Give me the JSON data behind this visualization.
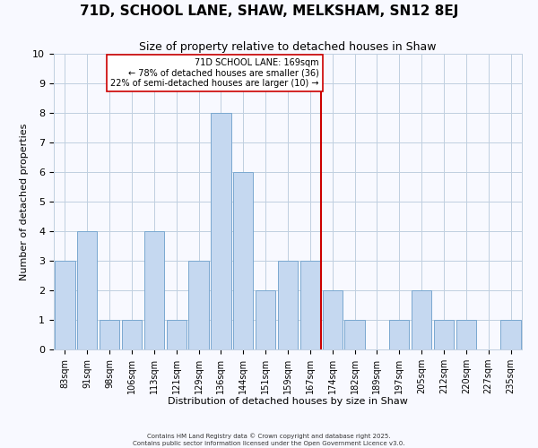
{
  "title": "71D, SCHOOL LANE, SHAW, MELKSHAM, SN12 8EJ",
  "subtitle": "Size of property relative to detached houses in Shaw",
  "xlabel": "Distribution of detached houses by size in Shaw",
  "ylabel": "Number of detached properties",
  "bin_labels": [
    "83sqm",
    "91sqm",
    "98sqm",
    "106sqm",
    "113sqm",
    "121sqm",
    "129sqm",
    "136sqm",
    "144sqm",
    "151sqm",
    "159sqm",
    "167sqm",
    "174sqm",
    "182sqm",
    "189sqm",
    "197sqm",
    "205sqm",
    "212sqm",
    "220sqm",
    "227sqm",
    "235sqm"
  ],
  "bar_heights": [
    3,
    4,
    1,
    1,
    4,
    1,
    3,
    8,
    6,
    2,
    3,
    3,
    2,
    1,
    0,
    1,
    2,
    1,
    1,
    0,
    1
  ],
  "bar_color": "#c5d8f0",
  "bar_edgecolor": "#7aa8d0",
  "grid_color": "#c0cfe0",
  "vline_x_index": 11.5,
  "vline_color": "#cc0000",
  "annotation_line1": "71D SCHOOL LANE: 169sqm",
  "annotation_line2": "← 78% of detached houses are smaller (36)",
  "annotation_line3": "22% of semi-detached houses are larger (10) →",
  "annotation_box_color": "#ffffff",
  "annotation_box_edgecolor": "#cc0000",
  "ylim": [
    0,
    10
  ],
  "yticks": [
    0,
    1,
    2,
    3,
    4,
    5,
    6,
    7,
    8,
    9,
    10
  ],
  "footer_text": "Contains HM Land Registry data © Crown copyright and database right 2025.\nContains public sector information licensed under the Open Government Licence v3.0.",
  "background_color": "#f8f9ff",
  "title_fontsize": 11,
  "subtitle_fontsize": 9,
  "axis_label_fontsize": 8,
  "tick_fontsize": 7,
  "annotation_fontsize": 7,
  "footer_fontsize": 5
}
